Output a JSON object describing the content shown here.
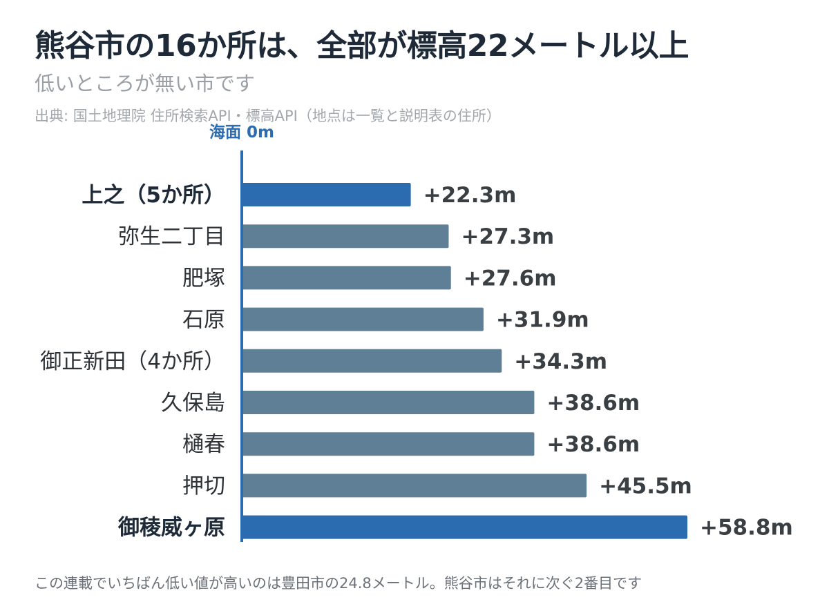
{
  "header": {
    "title": "熊谷市の16か所は、全部が標高22メートル以上",
    "subtitle": "低いところが無い市です",
    "source": "出典: 国土地理院 住所検索API・標高API（地点は一覧と説明表の住所）"
  },
  "footnote": "この連載でいちばん低い値が高いのは豊田市の24.8メートル。熊谷市はそれに次ぐ2番目です",
  "chart_data": {
    "type": "bar",
    "orientation": "horizontal",
    "baseline_label": "海面 0m",
    "categories": [
      "上之（5か所）",
      "弥生二丁目",
      "肥塚",
      "石原",
      "御正新田（4か所）",
      "久保島",
      "樋春",
      "押切",
      "御稜威ヶ原"
    ],
    "values": [
      22.3,
      27.3,
      27.6,
      31.9,
      34.3,
      38.6,
      38.6,
      45.5,
      58.8
    ],
    "value_labels": [
      "+22.3m",
      "+27.3m",
      "+27.6m",
      "+31.9m",
      "+34.3m",
      "+38.6m",
      "+38.6m",
      "+45.5m",
      "+58.8m"
    ],
    "highlighted": [
      true,
      false,
      false,
      false,
      false,
      false,
      false,
      false,
      true
    ],
    "xlim": [
      0,
      58.8
    ],
    "grid": false,
    "colors": {
      "highlight": "#2b6cb0",
      "normal": "#5f7f96",
      "baseline": "#2b6cb0",
      "label_bold": "#1e2a38",
      "label_normal": "#2e3338",
      "value_label": "#3a3f44"
    }
  }
}
